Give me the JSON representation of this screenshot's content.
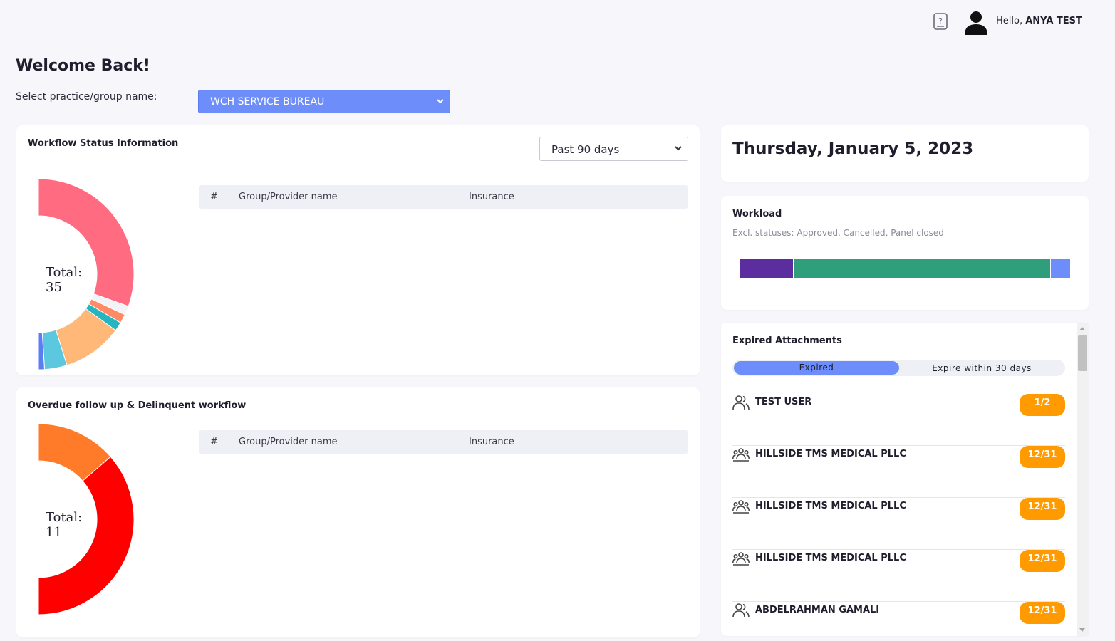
{
  "header": {
    "help_icon": "help-document-icon",
    "avatar_icon": "user-avatar-icon",
    "greeting_prefix": "Hello,",
    "user_name": "ANYA TEST"
  },
  "page": {
    "welcome": "Welcome Back!",
    "select_label": "Select practice/group name:",
    "practice_selected": "WCH SERVICE BUREAU"
  },
  "workflow_status": {
    "title": "Workflow Status Information",
    "range_selected": "Past 90 days",
    "total_label": "Total:",
    "total_value": "35",
    "table_columns": [
      "#",
      "Group/Provider name",
      "Insurance"
    ],
    "segments": [
      {
        "value": 12,
        "color": "#ff6b81"
      },
      {
        "value": 0.6,
        "color": "#f3f3f7"
      },
      {
        "value": 0.6,
        "color": "#ff8a65"
      },
      {
        "value": 0.6,
        "color": "#26b5bf"
      },
      {
        "value": 4,
        "color": "#ffb877"
      },
      {
        "value": 1.5,
        "color": "#5cc8e0"
      },
      {
        "value": 0.4,
        "color": "#5b7ef5"
      }
    ]
  },
  "overdue": {
    "title": "Overdue follow up & Delinquent workflow",
    "total_label": "Total:",
    "total_value": "11",
    "table_columns": [
      "#",
      "Group/Provider name",
      "Insurance"
    ],
    "segments": [
      {
        "value": 3,
        "color": "#ff7a29"
      },
      {
        "value": 8,
        "color": "#ff0000"
      }
    ]
  },
  "date_card": {
    "date": "Thursday, January 5, 2023"
  },
  "workload": {
    "title": "Workload",
    "subtitle": "Excl. statuses: Approved, Cancelled, Panel closed",
    "segments": [
      {
        "fraction": 0.162,
        "color": "#5b2d9e"
      },
      {
        "fraction": 0.778,
        "color": "#2f9e7a"
      },
      {
        "fraction": 0.06,
        "color": "#6c8dfa"
      }
    ]
  },
  "expired_attachments": {
    "title": "Expired Attachments",
    "tab_active": "Expired",
    "tab_inactive": "Expire within 30 days",
    "items": [
      {
        "name": "TEST USER",
        "badge": "1/2",
        "icon": "user-icon"
      },
      {
        "name": "HILLSIDE TMS MEDICAL PLLC",
        "badge": "12/31",
        "icon": "group-icon"
      },
      {
        "name": "HILLSIDE TMS MEDICAL PLLC",
        "badge": "12/31",
        "icon": "group-icon"
      },
      {
        "name": "HILLSIDE TMS MEDICAL PLLC",
        "badge": "12/31",
        "icon": "group-icon"
      },
      {
        "name": "ABDELRAHMAN GAMALI",
        "badge": "12/31",
        "icon": "user-icon"
      }
    ]
  }
}
